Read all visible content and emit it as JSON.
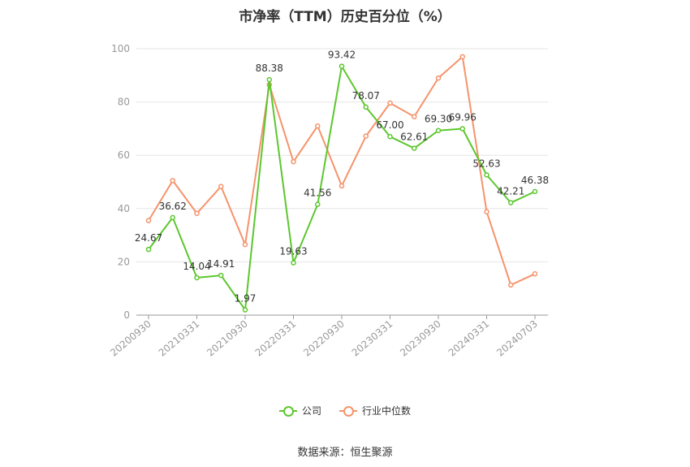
{
  "chart_data": {
    "type": "line",
    "title": "市净率（TTM）历史百分位（%）",
    "xlabel": "",
    "ylabel": "",
    "ylim": [
      0,
      100
    ],
    "yticks": [
      0,
      20,
      40,
      60,
      80,
      100
    ],
    "grid": true,
    "legend_position": "bottom",
    "x": [
      "20200930",
      "20201231",
      "20210331",
      "20210630",
      "20210930",
      "20211231",
      "20220331",
      "20220630",
      "20220930",
      "20221231",
      "20230331",
      "20230630",
      "20230930",
      "20231231",
      "20240331",
      "20240630",
      "20240703"
    ],
    "x_tick_labels": [
      "20200930",
      "20210331",
      "20210930",
      "20220331",
      "20220930",
      "20230331",
      "20230930",
      "20240331",
      "20240703"
    ],
    "series": [
      {
        "name": "公司",
        "color": "#5cc72e",
        "values": [
          24.67,
          36.62,
          14.04,
          14.91,
          1.97,
          88.38,
          19.63,
          41.56,
          93.42,
          78.07,
          67.0,
          62.61,
          69.3,
          69.96,
          52.63,
          42.21,
          46.38
        ],
        "labels": [
          "24.67",
          "36.62",
          "14.04",
          "14.91",
          "1.97",
          "88.38",
          "19.63",
          "41.56",
          "93.42",
          "78.07",
          "67.00",
          "62.61",
          "69.30",
          "69.96",
          "52.63",
          "42.21",
          "46.38"
        ]
      },
      {
        "name": "行业中位数",
        "color": "#f5936b",
        "values": [
          35.5,
          50.5,
          38.2,
          48.3,
          26.5,
          86.5,
          57.6,
          71.0,
          48.5,
          67.2,
          79.6,
          74.5,
          89.0,
          97.0,
          38.8,
          11.3,
          15.5
        ]
      }
    ]
  },
  "source": "数据来源：恒生聚源"
}
